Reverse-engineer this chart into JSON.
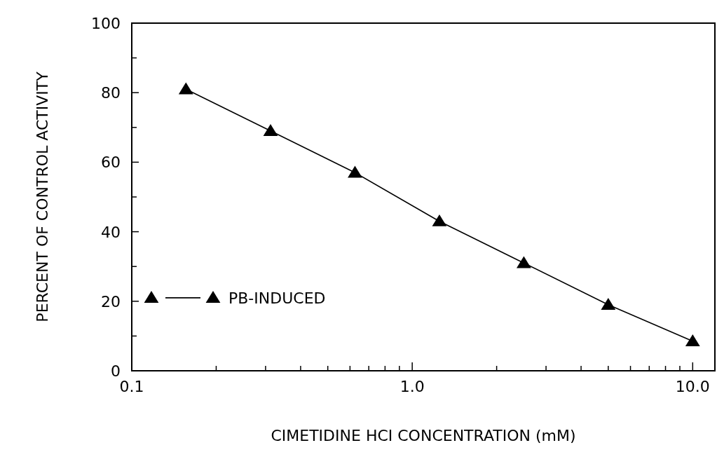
{
  "chart_data": {
    "type": "line",
    "xlabel": "CIMETIDINE HCI CONCENTRATION (mM)",
    "ylabel": "PERCENT OF CONTROL ACTIVITY",
    "x": [
      0.156,
      0.3125,
      0.625,
      1.25,
      2.5,
      5,
      10
    ],
    "series": [
      {
        "name": "PB-INDUCED",
        "color": "#000000",
        "values": [
          81,
          69,
          57,
          43,
          31,
          19,
          8.5
        ]
      }
    ],
    "log": "x",
    "xlim": [
      0.1,
      12
    ],
    "xticks": [
      0.1,
      {
        "value": 0.2,
        "label": null
      },
      {
        "value": 0.3,
        "label": null
      },
      {
        "value": 0.4,
        "label": null
      },
      {
        "value": 0.5,
        "label": null
      },
      {
        "value": 0.6,
        "label": null
      },
      {
        "value": 0.7,
        "label": null
      },
      {
        "value": 0.8,
        "label": null
      },
      {
        "value": 0.9,
        "label": null
      },
      {
        "value": 1,
        "label": "1.0"
      },
      {
        "value": 2,
        "label": null
      },
      {
        "value": 3,
        "label": null
      },
      {
        "value": 4,
        "label": null
      },
      {
        "value": 5,
        "label": null
      },
      {
        "value": 6,
        "label": null
      },
      {
        "value": 7,
        "label": null
      },
      {
        "value": 8,
        "label": null
      },
      {
        "value": 9,
        "label": null
      },
      {
        "value": 10,
        "label": "10.0"
      }
    ],
    "ylim": [
      0,
      100
    ],
    "yticks": [
      0,
      {
        "value": 10,
        "label": null
      },
      20,
      {
        "value": 30,
        "label": null
      },
      40,
      {
        "value": 50,
        "label": null
      },
      60,
      {
        "value": 70,
        "label": null
      },
      80,
      {
        "value": 90,
        "label": null
      },
      100
    ],
    "marker": "triangle",
    "line_style": "solid",
    "legend": "left",
    "grid": false
  }
}
